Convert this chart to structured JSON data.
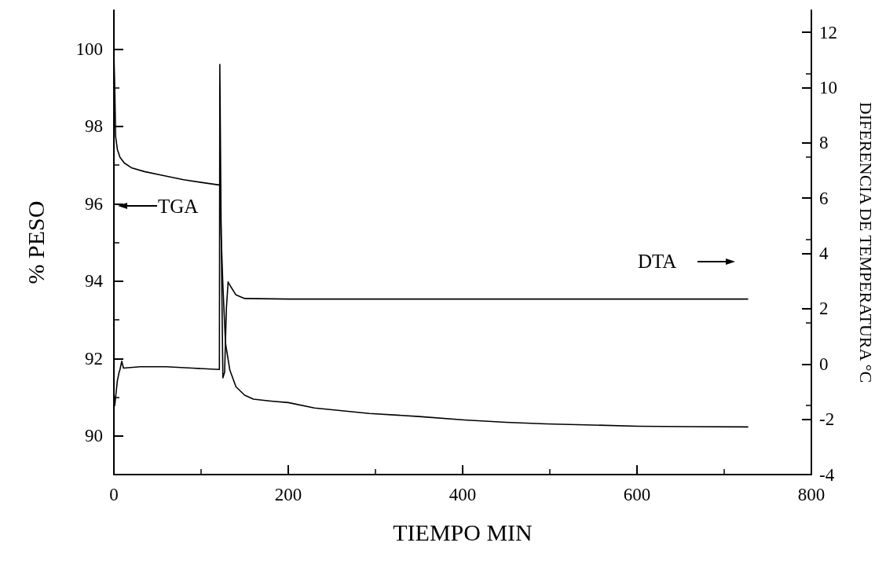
{
  "chart_data": {
    "type": "line",
    "xlabel": "TIEMPO MIN",
    "ylabel": "% PESO",
    "y2label": "DIFERENCIA DE TEMPERATURA °C",
    "xlim": [
      0,
      800
    ],
    "xticks": [
      0,
      200,
      400,
      600,
      800
    ],
    "ylim": [
      89,
      101
    ],
    "yticks": [
      90,
      92,
      94,
      96,
      98,
      100
    ],
    "y2lim": [
      -4,
      12.8
    ],
    "y2ticks": [
      -4,
      -2,
      0,
      2,
      4,
      6,
      8,
      10,
      12
    ],
    "series": [
      {
        "name": "TGA",
        "color": "#000000",
        "x": [
          0,
          1,
          2,
          4,
          7,
          12,
          20,
          35,
          56,
          80,
          100,
          122,
          123,
          125,
          128,
          133,
          140,
          150,
          160,
          180,
          200,
          230,
          275,
          293,
          350,
          402,
          450,
          496,
          550,
          602,
          660,
          727
        ],
        "values": [
          99.9,
          99.0,
          97.74,
          97.4,
          97.2,
          97.05,
          96.93,
          96.83,
          96.73,
          96.62,
          96.55,
          96.48,
          95.2,
          93.9,
          92.4,
          91.7,
          91.27,
          91.05,
          90.95,
          90.9,
          90.86,
          90.72,
          90.62,
          90.58,
          90.5,
          90.41,
          90.35,
          90.31,
          90.28,
          90.25,
          90.24,
          90.23
        ]
      },
      {
        "name": "DTA",
        "color": "#000000",
        "axis": "y2",
        "x": [
          0,
          1,
          2,
          4,
          6,
          7,
          9,
          11,
          30,
          60,
          90,
          121,
          121.5,
          123,
          125,
          127,
          129,
          131,
          134,
          140,
          150,
          200,
          300,
          400,
          500,
          600,
          727
        ],
        "values": [
          -1.0,
          -1.5,
          -1.2,
          -0.6,
          -0.3,
          -0.2,
          0.1,
          -0.15,
          -0.1,
          -0.1,
          -0.15,
          -0.2,
          10.84,
          5.0,
          -0.5,
          -0.3,
          2.0,
          2.97,
          2.8,
          2.5,
          2.37,
          2.35,
          2.35,
          2.35,
          2.35,
          2.35,
          2.35
        ]
      }
    ]
  }
}
